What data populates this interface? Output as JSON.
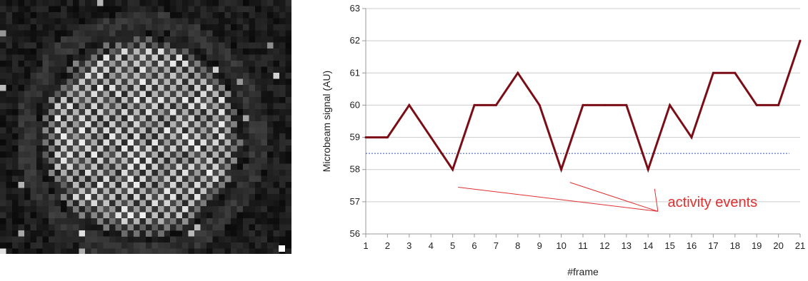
{
  "chart_data": {
    "type": "line",
    "title": "",
    "xlabel": "#frame",
    "ylabel": "Microbeam signal (AU)",
    "xlim": [
      1,
      21
    ],
    "ylim": [
      56,
      63
    ],
    "xticks": [
      1,
      2,
      3,
      4,
      5,
      6,
      7,
      8,
      9,
      10,
      11,
      12,
      13,
      14,
      15,
      16,
      17,
      18,
      19,
      20,
      21
    ],
    "yticks": [
      56,
      57,
      58,
      59,
      60,
      61,
      62,
      63
    ],
    "grid": "horizontal",
    "legend": "none",
    "series": [
      {
        "x": [
          1,
          2,
          3,
          4,
          5,
          6,
          7,
          8,
          9,
          10,
          11,
          12,
          13,
          14,
          15,
          16,
          17,
          18,
          19,
          20,
          21
        ],
        "values": [
          59,
          59,
          60,
          59,
          58,
          60,
          60,
          61,
          60,
          58,
          60,
          60,
          60,
          58,
          60,
          59,
          61,
          61,
          60,
          60,
          62
        ],
        "color": "#7b0d17"
      }
    ],
    "threshold": {
      "value": 58.5,
      "color": "#3355aa",
      "style": "dotted"
    },
    "annotation": {
      "text": "activity events",
      "color": "#e03030",
      "pointers_to_frames": [
        5,
        11,
        14
      ]
    }
  },
  "image_panel": {
    "icon": "microbeam-array-image"
  }
}
